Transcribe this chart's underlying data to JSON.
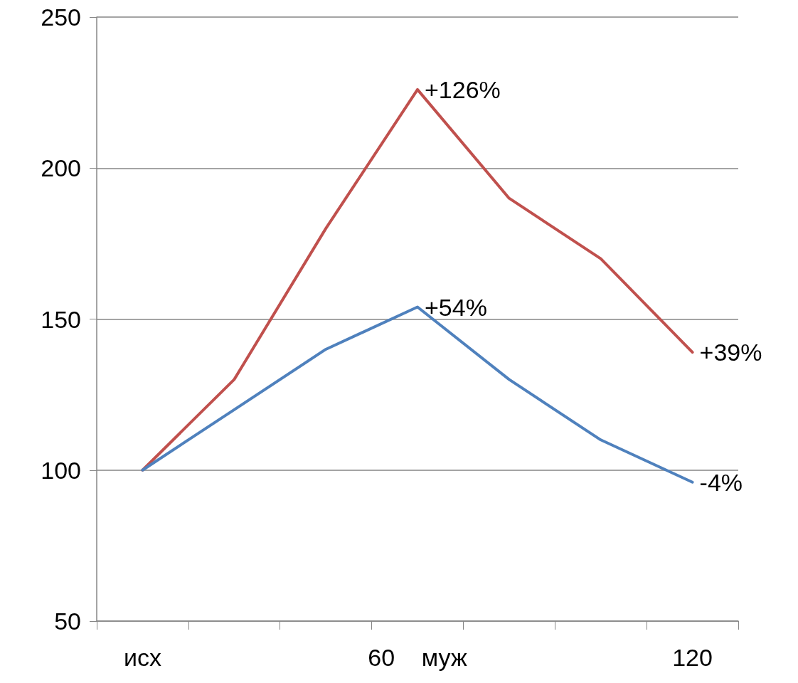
{
  "chart_data": {
    "type": "line",
    "categories": [
      "исх",
      null,
      null,
      "60    муж",
      null,
      null,
      "120"
    ],
    "series": [
      {
        "color": "#c0504d",
        "values": [
          100,
          130,
          180,
          226,
          190,
          170,
          139
        ]
      },
      {
        "color": "#4f81bd",
        "values": [
          100,
          120,
          140,
          154,
          130,
          110,
          96
        ]
      }
    ],
    "annotations": [
      {
        "text": "+126%",
        "x": "60    муж",
        "y": 226
      },
      {
        "text": "+39%",
        "x": "120",
        "y": 139
      },
      {
        "text": "+54%",
        "x": "60    муж",
        "y": 154
      },
      {
        "text": "-4%",
        "x": "120",
        "y": 96
      }
    ],
    "ylim": [
      50,
      250
    ],
    "yticks": [
      50,
      100,
      150,
      200,
      250
    ],
    "grid": "y",
    "marker": "none",
    "line_style": "solid"
  }
}
